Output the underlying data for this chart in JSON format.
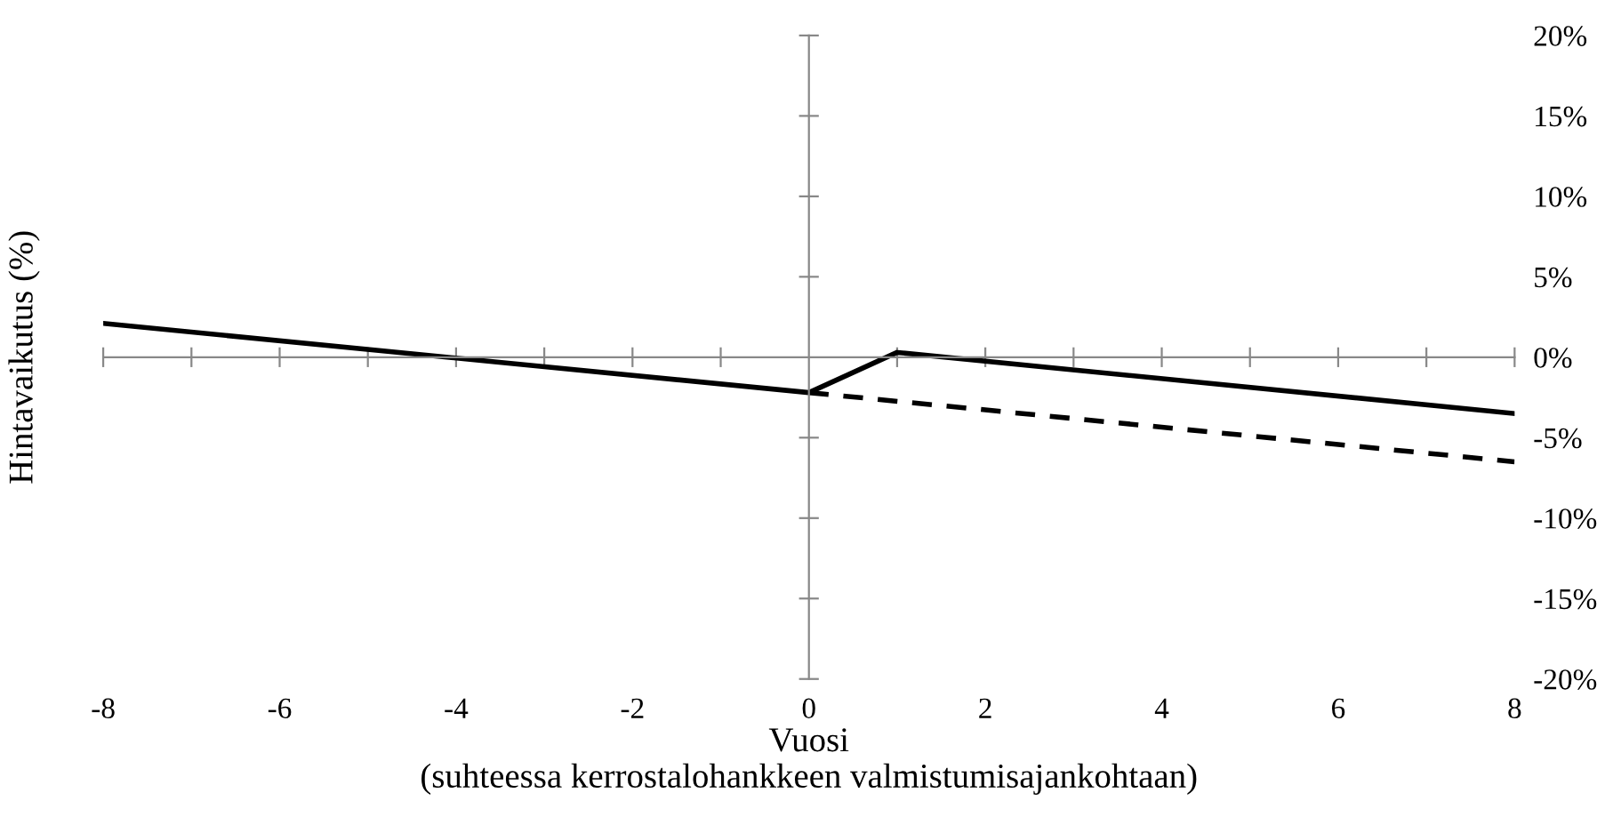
{
  "chart_data": {
    "type": "line",
    "xlabel": "Vuosi\n(suhteessa kerrostalohankkeen valmistumisajankohtaan)",
    "ylabel": "Hintavaikutus (%)",
    "series": [
      {
        "color": "#000000",
        "line_style": "solid",
        "x": [
          -8,
          0,
          1,
          8
        ],
        "values": [
          2.1,
          -2.2,
          0.3,
          -3.5
        ]
      },
      {
        "color": "#000000",
        "line_style": "dashed",
        "x": [
          0,
          8
        ],
        "values": [
          -2.2,
          -6.5
        ]
      }
    ],
    "xlim": [
      -8,
      8
    ],
    "xticks": [
      -8,
      {
        "value": -7,
        "label": null
      },
      -6,
      {
        "value": -5,
        "label": null
      },
      -4,
      {
        "value": -3,
        "label": null
      },
      -2,
      {
        "value": -1,
        "label": null
      },
      0,
      {
        "value": 1,
        "label": null
      },
      2,
      {
        "value": 3,
        "label": null
      },
      4,
      {
        "value": 5,
        "label": null
      },
      6,
      {
        "value": 7,
        "label": null
      },
      8
    ],
    "ylim": [
      -20,
      20
    ],
    "yticks": [
      {
        "value": -20,
        "label": "-20%"
      },
      {
        "value": -15,
        "label": "-15%"
      },
      {
        "value": -10,
        "label": "-10%"
      },
      {
        "value": -5,
        "label": "-5%"
      },
      {
        "value": 0,
        "label": "0%"
      },
      {
        "value": 5,
        "label": "5%"
      },
      {
        "value": 10,
        "label": "10%"
      },
      {
        "value": 15,
        "label": "15%"
      },
      {
        "value": 20,
        "label": "20%"
      }
    ],
    "marker": "none"
  }
}
